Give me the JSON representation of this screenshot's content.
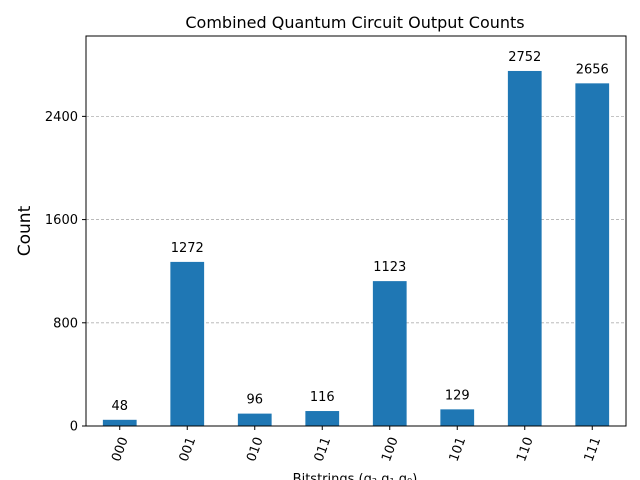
{
  "chart_data": {
    "type": "bar",
    "title": "Combined Quantum Circuit Output Counts",
    "xlabel": "Bitstrings (q₂ q₁ q₀)",
    "ylabel": "Count",
    "categories": [
      "000",
      "001",
      "010",
      "011",
      "100",
      "101",
      "110",
      "111"
    ],
    "values": [
      48,
      1272,
      96,
      116,
      1123,
      129,
      2752,
      2656
    ],
    "data_labels": [
      "48",
      "1272",
      "96",
      "116",
      "1123",
      "129",
      "2752",
      "2656"
    ],
    "ylim": [
      0,
      3023
    ],
    "yticks": [
      0,
      800,
      1600,
      2400
    ],
    "ytick_labels": [
      "0",
      "800",
      "1600",
      "2400"
    ],
    "grid": "y-dashed",
    "bar_color": "#1f77b4",
    "grid_color": "#b0b0b0"
  }
}
